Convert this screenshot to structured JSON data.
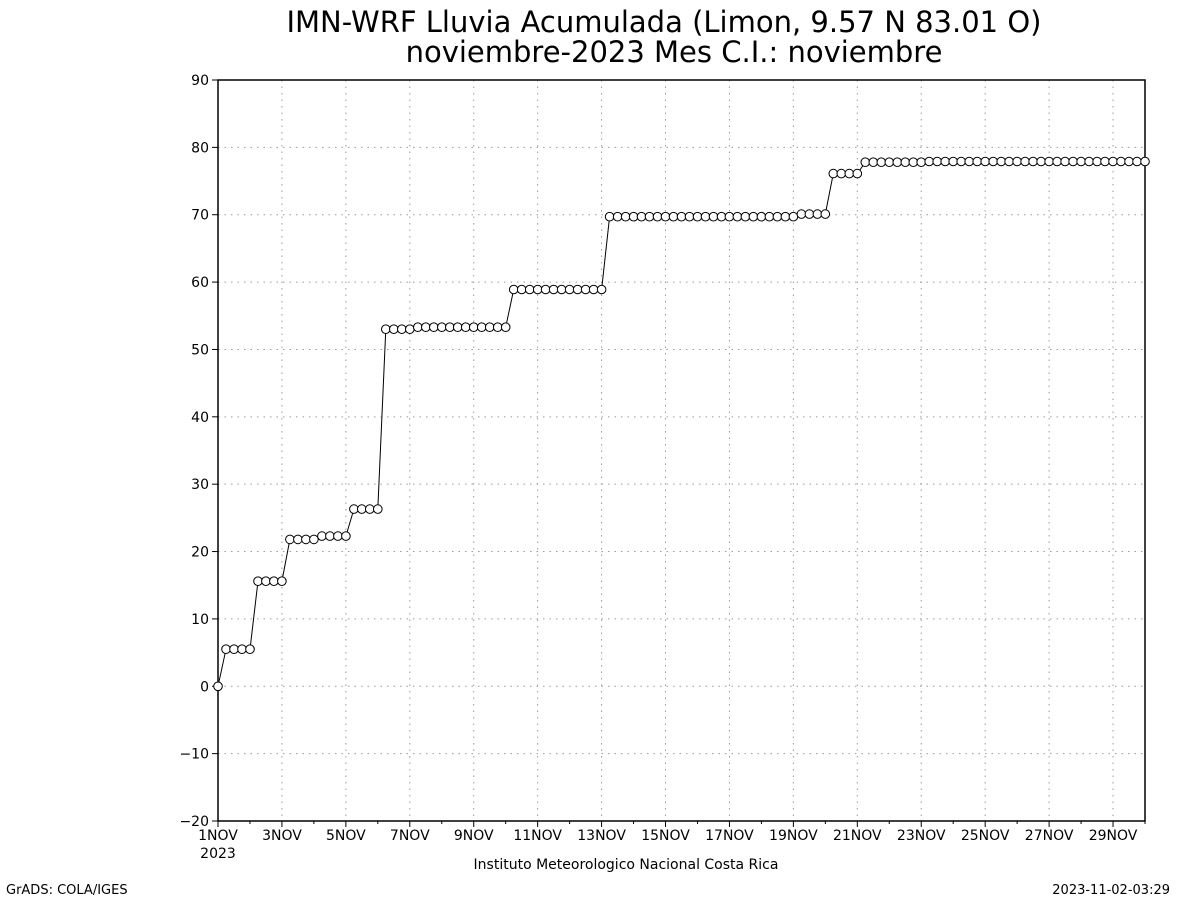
{
  "chart_data": {
    "type": "line",
    "title": "IMN-WRF  Lluvia Acumulada (Limon, 9.57  N 83.01  O)",
    "subtitle": "noviembre-2023 Mes C.I.: noviembre",
    "xlabel": "",
    "ylabel": "",
    "xlim": [
      "2023-11-01 00:00",
      "2023-11-30 00:00"
    ],
    "ylim": [
      -20,
      90
    ],
    "y_ticks": [
      -20,
      -10,
      0,
      10,
      20,
      30,
      40,
      50,
      60,
      70,
      80,
      90
    ],
    "x_ticks": [
      {
        "label": "1NOV",
        "sublabel": "2023",
        "date": "2023-11-01"
      },
      {
        "label": "3NOV",
        "date": "2023-11-03"
      },
      {
        "label": "5NOV",
        "date": "2023-11-05"
      },
      {
        "label": "7NOV",
        "date": "2023-11-07"
      },
      {
        "label": "9NOV",
        "date": "2023-11-09"
      },
      {
        "label": "11NOV",
        "date": "2023-11-11"
      },
      {
        "label": "13NOV",
        "date": "2023-11-13"
      },
      {
        "label": "15NOV",
        "date": "2023-11-15"
      },
      {
        "label": "17NOV",
        "date": "2023-11-17"
      },
      {
        "label": "19NOV",
        "date": "2023-11-19"
      },
      {
        "label": "21NOV",
        "date": "2023-11-21"
      },
      {
        "label": "23NOV",
        "date": "2023-11-23"
      },
      {
        "label": "25NOV",
        "date": "2023-11-25"
      },
      {
        "label": "27NOV",
        "date": "2023-11-27"
      },
      {
        "label": "29NOV",
        "date": "2023-11-29"
      }
    ],
    "grid": true,
    "marker": "open-circle",
    "series": [
      {
        "color": "#000000",
        "x": [
          "2023-11-01 00:00",
          "2023-11-01 06:00",
          "2023-11-01 12:00",
          "2023-11-01 18:00",
          "2023-11-02 00:00",
          "2023-11-02 06:00",
          "2023-11-02 12:00",
          "2023-11-02 18:00",
          "2023-11-03 00:00",
          "2023-11-03 06:00",
          "2023-11-03 12:00",
          "2023-11-03 18:00",
          "2023-11-04 00:00",
          "2023-11-04 06:00",
          "2023-11-04 12:00",
          "2023-11-04 18:00",
          "2023-11-05 00:00",
          "2023-11-05 06:00",
          "2023-11-05 12:00",
          "2023-11-05 18:00",
          "2023-11-06 00:00",
          "2023-11-06 06:00",
          "2023-11-06 12:00",
          "2023-11-06 18:00",
          "2023-11-07 00:00",
          "2023-11-07 06:00",
          "2023-11-07 12:00",
          "2023-11-07 18:00",
          "2023-11-08 00:00",
          "2023-11-08 06:00",
          "2023-11-08 12:00",
          "2023-11-08 18:00",
          "2023-11-09 00:00",
          "2023-11-09 06:00",
          "2023-11-09 12:00",
          "2023-11-09 18:00",
          "2023-11-10 00:00",
          "2023-11-10 06:00",
          "2023-11-10 12:00",
          "2023-11-10 18:00",
          "2023-11-11 00:00",
          "2023-11-11 06:00",
          "2023-11-11 12:00",
          "2023-11-11 18:00",
          "2023-11-12 00:00",
          "2023-11-12 06:00",
          "2023-11-12 12:00",
          "2023-11-12 18:00",
          "2023-11-13 00:00",
          "2023-11-13 06:00",
          "2023-11-13 12:00",
          "2023-11-13 18:00",
          "2023-11-14 00:00",
          "2023-11-14 06:00",
          "2023-11-14 12:00",
          "2023-11-14 18:00",
          "2023-11-15 00:00",
          "2023-11-15 06:00",
          "2023-11-15 12:00",
          "2023-11-15 18:00",
          "2023-11-16 00:00",
          "2023-11-16 06:00",
          "2023-11-16 12:00",
          "2023-11-16 18:00",
          "2023-11-17 00:00",
          "2023-11-17 06:00",
          "2023-11-17 12:00",
          "2023-11-17 18:00",
          "2023-11-18 00:00",
          "2023-11-18 06:00",
          "2023-11-18 12:00",
          "2023-11-18 18:00",
          "2023-11-19 00:00",
          "2023-11-19 06:00",
          "2023-11-19 12:00",
          "2023-11-19 18:00",
          "2023-11-20 00:00",
          "2023-11-20 06:00",
          "2023-11-20 12:00",
          "2023-11-20 18:00",
          "2023-11-21 00:00",
          "2023-11-21 06:00",
          "2023-11-21 12:00",
          "2023-11-21 18:00",
          "2023-11-22 00:00",
          "2023-11-22 06:00",
          "2023-11-22 12:00",
          "2023-11-22 18:00",
          "2023-11-23 00:00",
          "2023-11-23 06:00",
          "2023-11-23 12:00",
          "2023-11-23 18:00",
          "2023-11-24 00:00",
          "2023-11-24 06:00",
          "2023-11-24 12:00",
          "2023-11-24 18:00",
          "2023-11-25 00:00",
          "2023-11-25 06:00",
          "2023-11-25 12:00",
          "2023-11-25 18:00",
          "2023-11-26 00:00",
          "2023-11-26 06:00",
          "2023-11-26 12:00",
          "2023-11-26 18:00",
          "2023-11-27 00:00",
          "2023-11-27 06:00",
          "2023-11-27 12:00",
          "2023-11-27 18:00",
          "2023-11-28 00:00",
          "2023-11-28 06:00",
          "2023-11-28 12:00",
          "2023-11-28 18:00",
          "2023-11-29 00:00",
          "2023-11-29 06:00",
          "2023-11-29 12:00",
          "2023-11-29 18:00",
          "2023-11-30 00:00"
        ],
        "y": [
          0,
          5.5,
          5.5,
          5.5,
          5.5,
          15.6,
          15.6,
          15.6,
          15.6,
          21.8,
          21.8,
          21.8,
          21.8,
          22.3,
          22.3,
          22.3,
          22.3,
          26.3,
          26.3,
          26.3,
          26.3,
          53.0,
          53.0,
          53.0,
          53.0,
          53.3,
          53.3,
          53.3,
          53.3,
          53.3,
          53.3,
          53.3,
          53.3,
          53.3,
          53.3,
          53.3,
          53.3,
          58.9,
          58.9,
          58.9,
          58.9,
          58.9,
          58.9,
          58.9,
          58.9,
          58.9,
          58.9,
          58.9,
          58.9,
          69.7,
          69.7,
          69.7,
          69.7,
          69.7,
          69.7,
          69.7,
          69.7,
          69.7,
          69.7,
          69.7,
          69.7,
          69.7,
          69.7,
          69.7,
          69.7,
          69.7,
          69.7,
          69.7,
          69.7,
          69.7,
          69.7,
          69.7,
          69.7,
          70.1,
          70.1,
          70.1,
          70.1,
          76.1,
          76.1,
          76.1,
          76.1,
          77.8,
          77.8,
          77.8,
          77.8,
          77.8,
          77.8,
          77.8,
          77.8,
          77.9,
          77.9,
          77.9,
          77.9,
          77.9,
          77.9,
          77.9,
          77.9,
          77.9,
          77.9,
          77.9,
          77.9,
          77.9,
          77.9,
          77.9,
          77.9,
          77.9,
          77.9,
          77.9,
          77.9,
          77.9,
          77.9,
          77.9,
          77.9,
          77.9,
          77.9,
          77.9,
          77.9
        ]
      }
    ]
  },
  "footer": {
    "institution": "Instituto Meteorologico Nacional Costa Rica",
    "credit_left": "GrADS: COLA/IGES",
    "timestamp": "2023-11-02-03:29"
  }
}
